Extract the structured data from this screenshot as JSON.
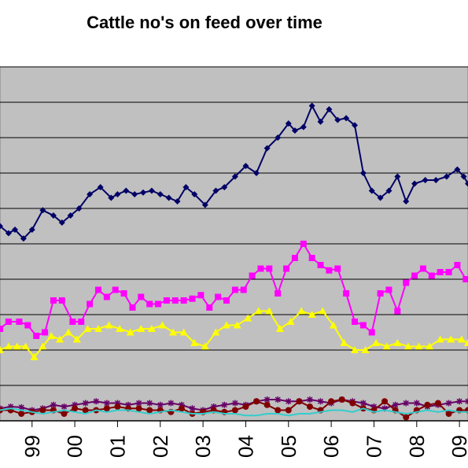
{
  "chart_data": {
    "type": "line",
    "title": "Cattle no's on feed over time",
    "xlabel": "",
    "ylabel": "",
    "x_ticks": [
      "99",
      "00",
      "01",
      "02",
      "03",
      "04",
      "05",
      "06",
      "07",
      "08",
      "09"
    ],
    "x_tick_positions": [
      1999,
      2000,
      2001,
      2002,
      2003,
      2004,
      2005,
      2006,
      2007,
      2008,
      2009
    ],
    "x_range": [
      1998.25,
      2009.2
    ],
    "ylim": [
      0,
      10
    ],
    "grid": true,
    "legend": "none",
    "plot_background": "#c0c0c0",
    "series": [
      {
        "color": "#000066",
        "marker": "diamond",
        "x": [
          1998.25,
          1998.45,
          1998.6,
          1998.8,
          1999.0,
          1999.25,
          1999.5,
          1999.7,
          1999.9,
          2000.1,
          2000.35,
          2000.6,
          2000.85,
          2001.0,
          2001.2,
          2001.4,
          2001.6,
          2001.8,
          2002.0,
          2002.2,
          2002.4,
          2002.6,
          2002.8,
          2003.05,
          2003.3,
          2003.5,
          2003.75,
          2004.0,
          2004.25,
          2004.5,
          2004.75,
          2005.0,
          2005.15,
          2005.35,
          2005.55,
          2005.75,
          2005.95,
          2006.15,
          2006.35,
          2006.55,
          2006.75,
          2006.95,
          2007.15,
          2007.35,
          2007.55,
          2007.75,
          2007.95,
          2008.2,
          2008.45,
          2008.7,
          2008.95,
          2009.1,
          2009.2
        ],
        "values": [
          5.5,
          5.3,
          5.4,
          5.15,
          5.4,
          5.95,
          5.8,
          5.6,
          5.8,
          6.0,
          6.4,
          6.6,
          6.3,
          6.4,
          6.5,
          6.4,
          6.45,
          6.5,
          6.4,
          6.3,
          6.2,
          6.6,
          6.4,
          6.1,
          6.5,
          6.6,
          6.9,
          7.2,
          7.0,
          7.7,
          8.0,
          8.4,
          8.2,
          8.3,
          8.9,
          8.45,
          8.8,
          8.5,
          8.55,
          8.35,
          7.0,
          6.5,
          6.3,
          6.5,
          6.9,
          6.2,
          6.7,
          6.8,
          6.8,
          6.9,
          7.1,
          6.9,
          6.7
        ]
      },
      {
        "color": "#ff00ff",
        "marker": "square",
        "x": [
          1998.25,
          1998.45,
          1998.7,
          1998.9,
          1999.1,
          1999.3,
          1999.5,
          1999.7,
          1999.95,
          2000.15,
          2000.35,
          2000.55,
          2000.75,
          2000.95,
          2001.15,
          2001.35,
          2001.55,
          2001.75,
          2001.95,
          2002.15,
          2002.35,
          2002.55,
          2002.75,
          2002.95,
          2003.15,
          2003.35,
          2003.55,
          2003.75,
          2003.95,
          2004.15,
          2004.35,
          2004.55,
          2004.75,
          2004.95,
          2005.15,
          2005.35,
          2005.55,
          2005.75,
          2005.95,
          2006.15,
          2006.35,
          2006.55,
          2006.75,
          2006.95,
          2007.15,
          2007.35,
          2007.55,
          2007.75,
          2007.95,
          2008.15,
          2008.35,
          2008.55,
          2008.75,
          2008.95,
          2009.15
        ],
        "values": [
          2.6,
          2.8,
          2.8,
          2.7,
          2.4,
          2.5,
          3.4,
          3.4,
          2.8,
          2.8,
          3.3,
          3.7,
          3.5,
          3.7,
          3.6,
          3.2,
          3.5,
          3.3,
          3.3,
          3.4,
          3.4,
          3.4,
          3.45,
          3.55,
          3.2,
          3.5,
          3.4,
          3.7,
          3.7,
          4.1,
          4.3,
          4.3,
          3.6,
          4.3,
          4.6,
          5.0,
          4.6,
          4.4,
          4.25,
          4.3,
          3.6,
          2.8,
          2.7,
          2.5,
          3.6,
          3.7,
          3.1,
          3.9,
          4.1,
          4.3,
          4.1,
          4.2,
          4.2,
          4.4,
          4.0
        ]
      },
      {
        "color": "#ffff00",
        "marker": "triangle",
        "x": [
          1998.25,
          1998.45,
          1998.65,
          1998.85,
          1999.05,
          1999.25,
          1999.45,
          1999.65,
          1999.85,
          2000.05,
          2000.3,
          2000.55,
          2000.8,
          2001.05,
          2001.3,
          2001.55,
          2001.8,
          2002.05,
          2002.3,
          2002.55,
          2002.8,
          2003.05,
          2003.3,
          2003.55,
          2003.8,
          2004.05,
          2004.3,
          2004.55,
          2004.8,
          2005.05,
          2005.3,
          2005.55,
          2005.8,
          2006.05,
          2006.3,
          2006.55,
          2006.8,
          2007.05,
          2007.3,
          2007.55,
          2007.8,
          2008.05,
          2008.3,
          2008.55,
          2008.8,
          2009.05,
          2009.2
        ],
        "values": [
          2.0,
          2.1,
          2.1,
          2.1,
          1.8,
          2.1,
          2.4,
          2.3,
          2.5,
          2.3,
          2.6,
          2.6,
          2.7,
          2.6,
          2.5,
          2.6,
          2.6,
          2.7,
          2.5,
          2.5,
          2.2,
          2.1,
          2.5,
          2.7,
          2.7,
          2.9,
          3.1,
          3.1,
          2.6,
          2.8,
          3.1,
          3.0,
          3.1,
          2.7,
          2.2,
          2.0,
          2.0,
          2.2,
          2.1,
          2.2,
          2.1,
          2.1,
          2.1,
          2.3,
          2.3,
          2.3,
          2.2
        ]
      },
      {
        "color": "#660066",
        "marker": "asterisk",
        "x": [
          1998.25,
          1998.5,
          1998.75,
          1999.0,
          1999.25,
          1999.5,
          1999.75,
          2000.0,
          2000.25,
          2000.5,
          2000.75,
          2001.0,
          2001.25,
          2001.5,
          2001.75,
          2002.0,
          2002.25,
          2002.5,
          2002.75,
          2003.0,
          2003.25,
          2003.5,
          2003.75,
          2004.0,
          2004.25,
          2004.5,
          2004.75,
          2005.0,
          2005.25,
          2005.5,
          2005.75,
          2006.0,
          2006.25,
          2006.5,
          2006.75,
          2007.0,
          2007.25,
          2007.5,
          2007.75,
          2008.0,
          2008.25,
          2008.5,
          2008.75,
          2009.0,
          2009.2
        ],
        "values": [
          0.35,
          0.4,
          0.38,
          0.3,
          0.35,
          0.45,
          0.4,
          0.45,
          0.5,
          0.55,
          0.5,
          0.5,
          0.45,
          0.5,
          0.5,
          0.45,
          0.5,
          0.45,
          0.35,
          0.3,
          0.4,
          0.45,
          0.5,
          0.45,
          0.55,
          0.6,
          0.6,
          0.55,
          0.55,
          0.6,
          0.55,
          0.5,
          0.6,
          0.55,
          0.5,
          0.4,
          0.35,
          0.45,
          0.5,
          0.5,
          0.4,
          0.45,
          0.5,
          0.55,
          0.55
        ]
      },
      {
        "color": "#800000",
        "marker": "circle",
        "x": [
          1998.25,
          1998.5,
          1998.75,
          1999.0,
          1999.25,
          1999.5,
          1999.75,
          2000.0,
          2000.25,
          2000.5,
          2000.75,
          2001.0,
          2001.25,
          2001.5,
          2001.75,
          2002.0,
          2002.25,
          2002.5,
          2002.75,
          2003.0,
          2003.25,
          2003.5,
          2003.75,
          2004.0,
          2004.25,
          2004.5,
          2004.75,
          2005.0,
          2005.25,
          2005.5,
          2005.75,
          2006.0,
          2006.25,
          2006.5,
          2006.75,
          2007.0,
          2007.25,
          2007.5,
          2007.75,
          2008.0,
          2008.25,
          2008.5,
          2008.75,
          2009.0,
          2009.2
        ],
        "values": [
          0.3,
          0.3,
          0.2,
          0.25,
          0.3,
          0.3,
          0.2,
          0.35,
          0.3,
          0.3,
          0.35,
          0.4,
          0.35,
          0.35,
          0.3,
          0.3,
          0.25,
          0.35,
          0.2,
          0.25,
          0.3,
          0.25,
          0.3,
          0.4,
          0.55,
          0.45,
          0.3,
          0.3,
          0.55,
          0.4,
          0.3,
          0.55,
          0.6,
          0.5,
          0.35,
          0.3,
          0.55,
          0.3,
          0.1,
          0.3,
          0.45,
          0.5,
          0.2,
          0.3,
          0.3
        ]
      },
      {
        "color": "#33cccc",
        "marker": "none",
        "x": [
          1998.25,
          1998.5,
          1998.75,
          1999.0,
          1999.25,
          1999.5,
          1999.75,
          2000.0,
          2000.25,
          2000.5,
          2000.75,
          2001.0,
          2001.25,
          2001.5,
          2001.75,
          2002.0,
          2002.25,
          2002.5,
          2002.75,
          2003.0,
          2003.25,
          2003.5,
          2003.75,
          2004.0,
          2004.25,
          2004.5,
          2004.75,
          2005.0,
          2005.25,
          2005.5,
          2005.75,
          2006.0,
          2006.25,
          2006.5,
          2006.75,
          2007.0,
          2007.25,
          2007.5,
          2007.75,
          2008.0,
          2008.25,
          2008.5,
          2008.75,
          2009.0,
          2009.2
        ],
        "values": [
          0.3,
          0.35,
          0.3,
          0.25,
          0.2,
          0.25,
          0.3,
          0.25,
          0.2,
          0.3,
          0.25,
          0.3,
          0.3,
          0.25,
          0.2,
          0.25,
          0.3,
          0.25,
          0.2,
          0.2,
          0.25,
          0.2,
          0.2,
          0.15,
          0.15,
          0.2,
          0.2,
          0.15,
          0.2,
          0.2,
          0.25,
          0.3,
          0.3,
          0.25,
          0.35,
          0.25,
          0.3,
          0.25,
          0.2,
          0.25,
          0.3,
          0.25,
          0.3,
          0.25,
          0.25
        ]
      }
    ]
  }
}
